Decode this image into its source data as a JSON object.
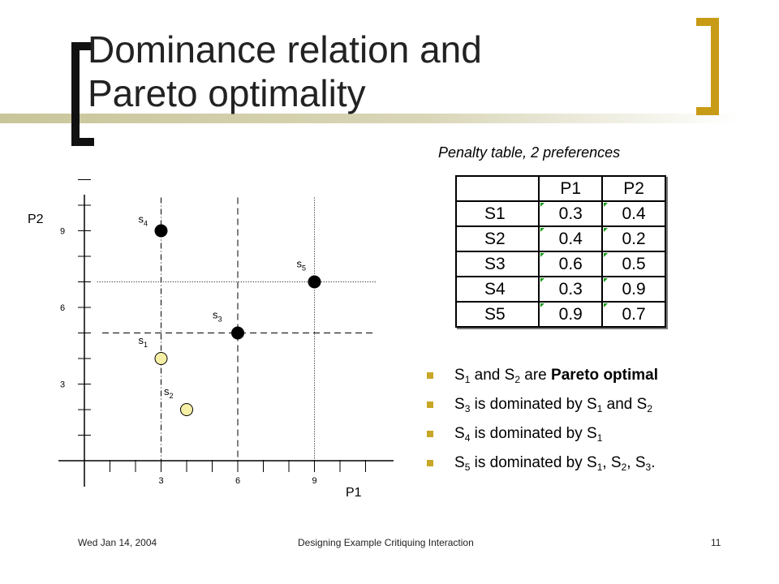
{
  "slide": {
    "title_line1": "Dominance relation and",
    "title_line2": "Pareto optimality",
    "accent_color": "#c89b17"
  },
  "table": {
    "caption": "Penalty table, 2 preferences",
    "headers": [
      "",
      "P1",
      "P2"
    ],
    "rows": [
      {
        "label": "S1",
        "p1": "0.3",
        "p2": "0.4"
      },
      {
        "label": "S2",
        "p1": "0.4",
        "p2": "0.2"
      },
      {
        "label": "S3",
        "p1": "0.6",
        "p2": "0.5"
      },
      {
        "label": "S4",
        "p1": "0.3",
        "p2": "0.9"
      },
      {
        "label": "S5",
        "p1": "0.9",
        "p2": "0.7"
      }
    ]
  },
  "bullets": [
    {
      "parts": [
        [
          "S",
          "1"
        ],
        [
          " and S",
          "2"
        ],
        [
          " are ",
          ""
        ]
      ],
      "bold": "Pareto optimal"
    },
    {
      "parts": [
        [
          "S",
          "3"
        ],
        [
          " is dominated by S",
          "1"
        ],
        [
          " and S",
          "2"
        ]
      ],
      "bold": ""
    },
    {
      "parts": [
        [
          "S",
          "4"
        ],
        [
          " is dominated by S",
          "1"
        ]
      ],
      "bold": ""
    },
    {
      "parts": [
        [
          "S",
          "5"
        ],
        [
          " is dominated by S",
          "1"
        ],
        [
          ", S",
          "2"
        ],
        [
          ", S",
          "3"
        ],
        [
          ".",
          ""
        ]
      ],
      "bold": ""
    }
  ],
  "chart_data": {
    "type": "scatter",
    "xlabel": "P1",
    "ylabel": "P2",
    "x_ticks": [
      "3",
      "6",
      "9"
    ],
    "y_ticks": [
      "3",
      "6",
      "9"
    ],
    "points": [
      {
        "label": "s",
        "sub": "1",
        "x": 3,
        "y": 4,
        "fill": "#f5f0a6"
      },
      {
        "label": "s",
        "sub": "2",
        "x": 4,
        "y": 2,
        "fill": "#f5f0a6"
      },
      {
        "label": "s",
        "sub": "3",
        "x": 6,
        "y": 5,
        "fill": "#000000"
      },
      {
        "label": "s",
        "sub": "4",
        "x": 3,
        "y": 9,
        "fill": "#000000"
      },
      {
        "label": "s",
        "sub": "5",
        "x": 9,
        "y": 7,
        "fill": "#000000"
      }
    ]
  },
  "footer": {
    "date": "Wed Jan 14, 2004",
    "title": "Designing Example Critiquing Interaction",
    "page": "11"
  }
}
